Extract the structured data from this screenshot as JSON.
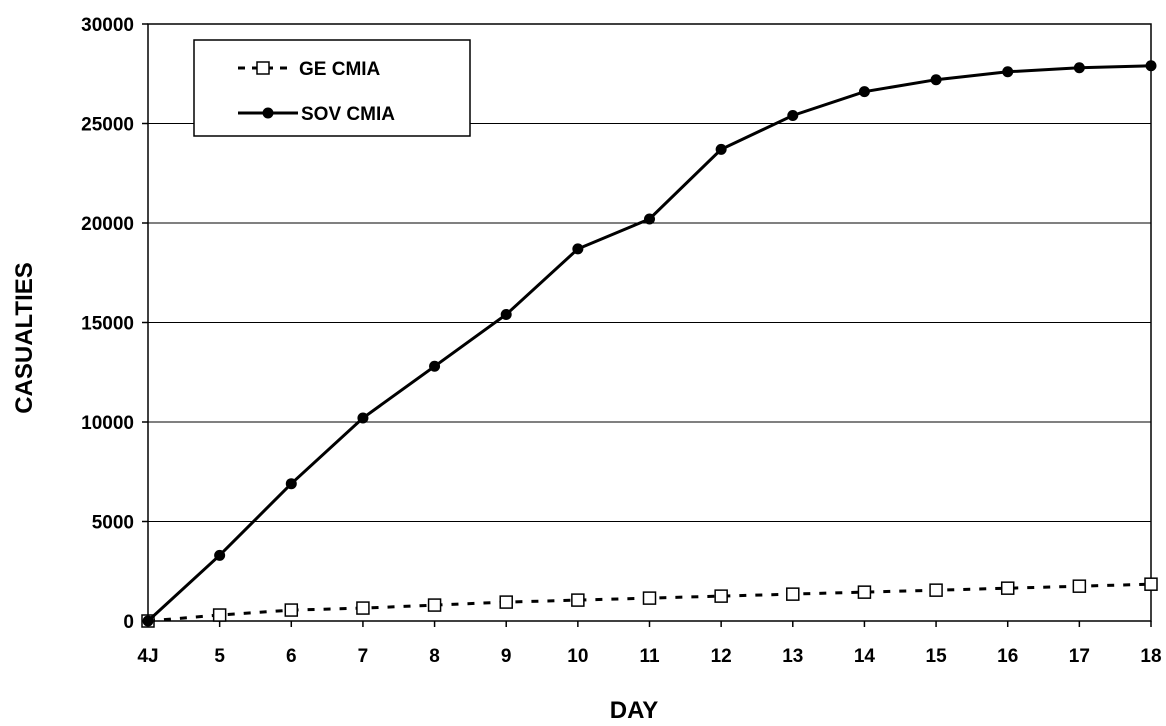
{
  "chart_data": {
    "type": "line",
    "title": "",
    "xlabel": "DAY",
    "ylabel": "CASUALTIES",
    "categories": [
      "4J",
      "5",
      "6",
      "7",
      "8",
      "9",
      "10",
      "11",
      "12",
      "13",
      "14",
      "15",
      "16",
      "17",
      "18"
    ],
    "ylim": [
      0,
      30000
    ],
    "yticks": [
      "0",
      "5000",
      "10000",
      "15000",
      "20000",
      "25000",
      "30000"
    ],
    "ytick_values": [
      0,
      5000,
      10000,
      15000,
      20000,
      25000,
      30000
    ],
    "grid": "horizontal",
    "legend_position": "top-left",
    "series": [
      {
        "name": "GE CMIA",
        "style": "dashed",
        "marker": "open-square",
        "color": "#000000",
        "values": [
          0,
          300,
          550,
          650,
          800,
          950,
          1050,
          1150,
          1250,
          1350,
          1450,
          1550,
          1650,
          1750,
          1850
        ]
      },
      {
        "name": "SOV CMIA",
        "style": "solid",
        "marker": "filled-circle",
        "color": "#000000",
        "values": [
          0,
          3300,
          6900,
          10200,
          12800,
          15400,
          18700,
          20200,
          23700,
          25400,
          26600,
          27200,
          27600,
          27800,
          27900
        ]
      }
    ]
  }
}
